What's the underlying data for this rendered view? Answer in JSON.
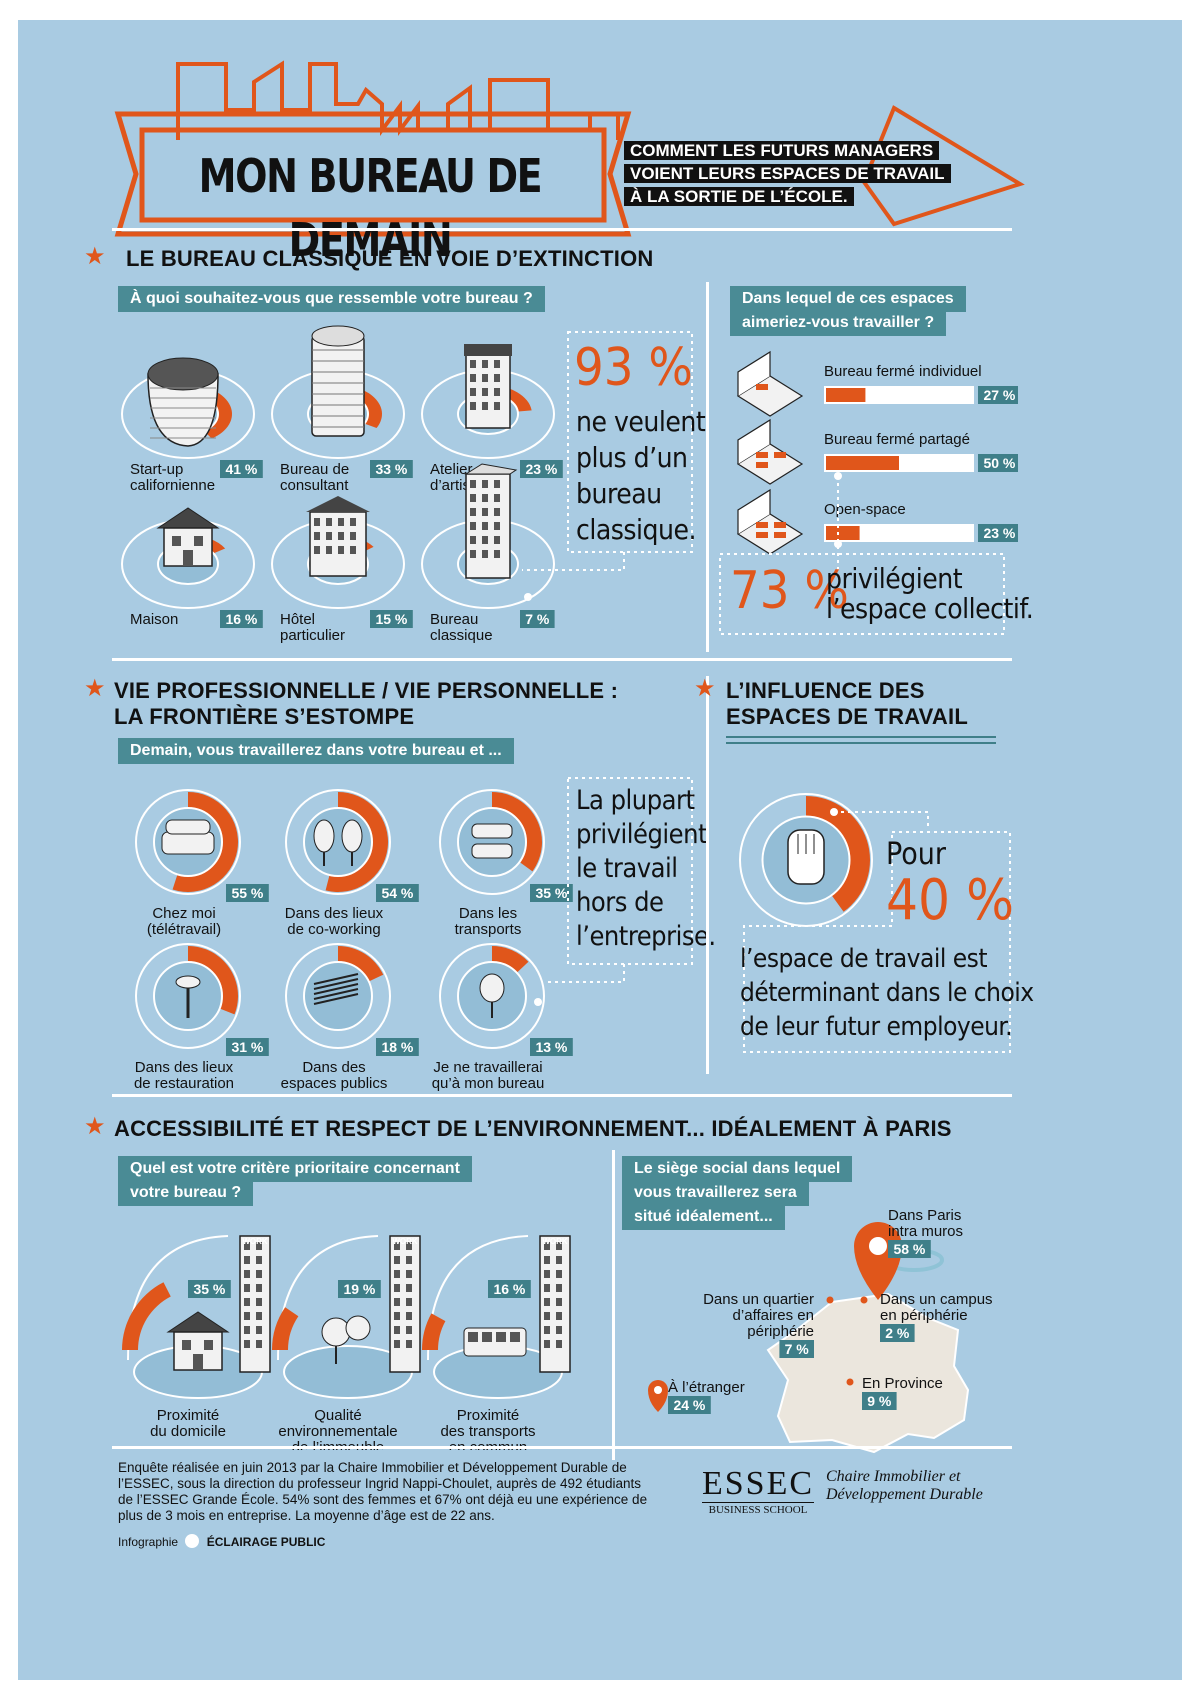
{
  "header": {
    "title": "MON BUREAU DE DEMAIN",
    "subtitle": [
      "COMMENT LES FUTURS MANAGERS",
      "VOIENT LEURS ESPACES DE TRAVAIL",
      "À LA SORTIE DE L’ÉCOLE."
    ]
  },
  "section1": {
    "title": "LE BUREAU CLASSIQUE EN VOIE D’EXTINCTION",
    "question": "À quoi souhaitez-vous que ressemble votre bureau ?",
    "stat_value": "93 %",
    "stat_text": [
      "ne veulent",
      "plus d’un",
      "bureau",
      "classique."
    ],
    "question2": [
      "Dans lequel de ces espaces",
      "aimeriez-vous travailler ?"
    ],
    "stat2_value": "73 %",
    "stat2_text": [
      "privilégient",
      "l’espace collectif."
    ]
  },
  "section2": {
    "title": [
      "VIE PROFESSIONNELLE / VIE PERSONNELLE :",
      "LA FRONTIÈRE S’ESTOMPE"
    ],
    "question": "Demain, vous travaillerez dans votre bureau et ...",
    "stat_text": [
      "La plupart",
      "privilégient",
      "le travail",
      "hors de",
      "l’entreprise."
    ]
  },
  "section3": {
    "title": [
      "L’INFLUENCE DES",
      "ESPACES DE TRAVAIL"
    ],
    "stat_pre": "Pour",
    "stat_value": "40 %",
    "stat_text": [
      "l’espace de travail est",
      "déterminant dans le choix",
      "de leur futur employeur."
    ]
  },
  "section4": {
    "title": "ACCESSIBILITÉ ET RESPECT DE L’ENVIRONNEMENT... IDÉALEMENT À PARIS",
    "question": [
      "Quel est votre critère prioritaire concernant",
      "votre bureau ?"
    ],
    "question2": [
      "Le siège social dans lequel",
      "vous travaillerez sera",
      "situé idéalement..."
    ]
  },
  "footer": {
    "text": [
      "Enquête réalisée en juin 2013 par la Chaire Immobilier et Développement Durable de",
      "l’ESSEC, sous la direction du professeur Ingrid Nappi-Choulet, auprès de 492 étudiants",
      "de l’ESSEC Grande École. 54% sont des femmes et 67% ont déjà eu une expérience de",
      "plus de 3 mois en entreprise. La moyenne d’âge est de 22 ans."
    ],
    "credit_label": "Infographie",
    "credit_name": "ÉCLAIRAGE PUBLIC",
    "logo": "ESSEC",
    "logo_sub": "BUSINESS SCHOOL",
    "chair": [
      "Chaire Immobilier et",
      "Développement Durable"
    ]
  },
  "chart_data": [
    {
      "type": "pie",
      "title": "À quoi souhaitez-vous que ressemble votre bureau ?",
      "categories": [
        [
          "Start-up",
          "californienne"
        ],
        [
          "Bureau de",
          "consultant"
        ],
        [
          "Atelier",
          "d’artiste"
        ],
        [
          "Maison"
        ],
        [
          "Hôtel",
          "particulier"
        ],
        [
          "Bureau",
          "classique"
        ]
      ],
      "values": [
        41,
        33,
        23,
        16,
        15,
        7
      ],
      "labels": [
        "41 %",
        "33 %",
        "23 %",
        "16 %",
        "15 %",
        "7 %"
      ],
      "icons": [
        "glass-tower-icon",
        "round-tower-icon",
        "artist-workshop-icon",
        "house-icon",
        "mansion-icon",
        "office-block-icon"
      ]
    },
    {
      "type": "bar",
      "title": "Dans lequel de ces espaces aimeriez-vous travailler ?",
      "categories": [
        "Bureau fermé individuel",
        "Bureau fermé partagé",
        "Open-space"
      ],
      "values": [
        27,
        50,
        23
      ],
      "labels": [
        "27 %",
        "50 %",
        "23 %"
      ],
      "ylim": [
        0,
        100
      ],
      "icons": [
        "individual-office-icon",
        "shared-office-icon",
        "open-space-icon"
      ]
    },
    {
      "type": "pie",
      "title": "Demain, vous travaillerez dans votre bureau et ...",
      "categories": [
        [
          "Chez moi",
          "(télétravail)"
        ],
        [
          "Dans des lieux",
          "de co-working"
        ],
        [
          "Dans les",
          "transports"
        ],
        [
          "Dans des lieux",
          "de restauration"
        ],
        [
          "Dans des",
          "espaces publics"
        ],
        [
          "Je ne travaillerai",
          "qu’à mon bureau"
        ]
      ],
      "values": [
        55,
        54,
        35,
        31,
        18,
        13
      ],
      "labels": [
        "55 %",
        "54 %",
        "35 %",
        "31 %",
        "18 %",
        "13 %"
      ],
      "icons": [
        "sofa-icon",
        "coworking-chairs-icon",
        "train-seats-icon",
        "bar-stool-icon",
        "park-bench-icon",
        "office-chair-icon"
      ]
    },
    {
      "type": "pie",
      "title": "",
      "categories": [
        "déterminant"
      ],
      "values": [
        40
      ],
      "icons": [
        "hand-icon"
      ]
    },
    {
      "type": "pie",
      "title": "Quel est votre critère prioritaire concernant votre bureau ?",
      "categories": [
        [
          "Proximité",
          "du domicile"
        ],
        [
          "Qualité",
          "environnementale",
          "de l’immeuble"
        ],
        [
          "Proximité",
          "des transports",
          "en commun"
        ]
      ],
      "values": [
        35,
        19,
        16
      ],
      "labels": [
        "35 %",
        "19 %",
        "16 %"
      ],
      "building_sign": "WORK",
      "icons": [
        "home-icon",
        "trees-icon",
        "bus-icon"
      ]
    },
    {
      "type": "bar",
      "title": "Le siège social dans lequel vous travaillerez sera situé idéalement...",
      "categories": [
        [
          "Dans Paris",
          "intra muros"
        ],
        [
          "À l’étranger"
        ],
        [
          "Dans un quartier",
          "d’affaires en",
          "périphérie"
        ],
        [
          "En Province"
        ],
        [
          "Dans un campus",
          "en périphérie"
        ]
      ],
      "values": [
        58,
        24,
        7,
        9,
        2
      ],
      "labels": [
        "58 %",
        "24 %",
        "7 %",
        "9 %",
        "2 %"
      ]
    }
  ]
}
